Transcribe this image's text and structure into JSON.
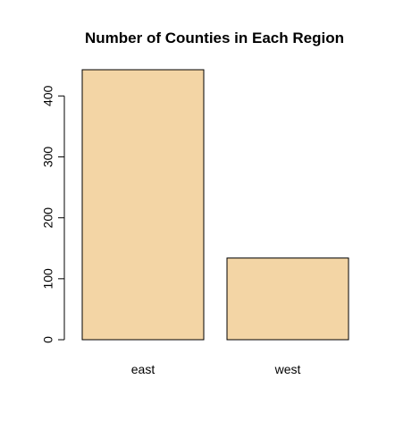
{
  "chart_data": {
    "type": "bar",
    "title": "Number of Counties in Each Region",
    "xlabel": "",
    "ylabel": "",
    "categories": [
      "east",
      "west"
    ],
    "values": [
      443,
      134
    ],
    "ylim": [
      0,
      443
    ],
    "yticks": [
      0,
      100,
      200,
      300,
      400
    ],
    "bar_color": "#f3d5a5",
    "border_color": "#000000",
    "grid": false,
    "legend": "none"
  }
}
